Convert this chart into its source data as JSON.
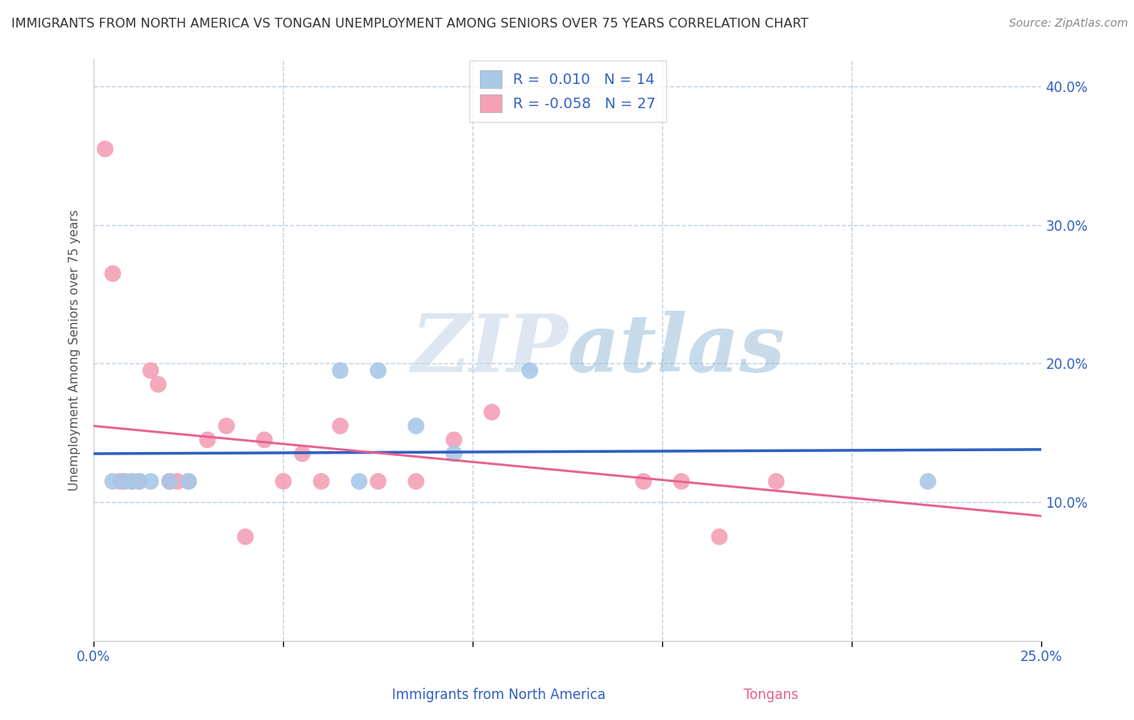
{
  "title": "IMMIGRANTS FROM NORTH AMERICA VS TONGAN UNEMPLOYMENT AMONG SENIORS OVER 75 YEARS CORRELATION CHART",
  "source": "Source: ZipAtlas.com",
  "ylabel": "Unemployment Among Seniors over 75 years",
  "x_label_bottom_center": "Immigrants from North America",
  "x_label_bottom_right": "Tongans",
  "xlim": [
    0.0,
    0.25
  ],
  "ylim": [
    0.0,
    0.42
  ],
  "xticks": [
    0.0,
    0.05,
    0.1,
    0.15,
    0.2,
    0.25
  ],
  "yticks": [
    0.0,
    0.1,
    0.2,
    0.3,
    0.4
  ],
  "blue_scatter_x": [
    0.005,
    0.008,
    0.01,
    0.012,
    0.015,
    0.02,
    0.025,
    0.065,
    0.075,
    0.085,
    0.095,
    0.115,
    0.22,
    0.07
  ],
  "blue_scatter_y": [
    0.115,
    0.115,
    0.115,
    0.115,
    0.115,
    0.115,
    0.115,
    0.195,
    0.195,
    0.155,
    0.135,
    0.195,
    0.115,
    0.115
  ],
  "pink_scatter_x": [
    0.003,
    0.005,
    0.007,
    0.008,
    0.01,
    0.012,
    0.015,
    0.017,
    0.02,
    0.022,
    0.025,
    0.03,
    0.035,
    0.04,
    0.045,
    0.05,
    0.055,
    0.06,
    0.065,
    0.075,
    0.085,
    0.095,
    0.105,
    0.145,
    0.155,
    0.165,
    0.18
  ],
  "pink_scatter_y": [
    0.355,
    0.265,
    0.115,
    0.115,
    0.115,
    0.115,
    0.195,
    0.185,
    0.115,
    0.115,
    0.115,
    0.145,
    0.155,
    0.075,
    0.145,
    0.115,
    0.135,
    0.115,
    0.155,
    0.115,
    0.115,
    0.145,
    0.165,
    0.115,
    0.115,
    0.075,
    0.115
  ],
  "blue_line_x": [
    0.0,
    0.25
  ],
  "blue_line_y": [
    0.135,
    0.138
  ],
  "pink_line_x": [
    0.0,
    0.25
  ],
  "pink_line_y": [
    0.155,
    0.09
  ],
  "blue_color": "#a8c8e8",
  "pink_color": "#f4a0b5",
  "blue_line_color": "#3060c0",
  "pink_line_color": "#e86090",
  "blue_R": "0.010",
  "blue_N": "14",
  "pink_R": "-0.058",
  "pink_N": "27",
  "legend_R_color": "#3060c0",
  "watermark_zip": "ZIP",
  "watermark_atlas": "atlas",
  "grid_color": "#c0d0e0",
  "background_color": "#ffffff",
  "scatter_size": 220
}
